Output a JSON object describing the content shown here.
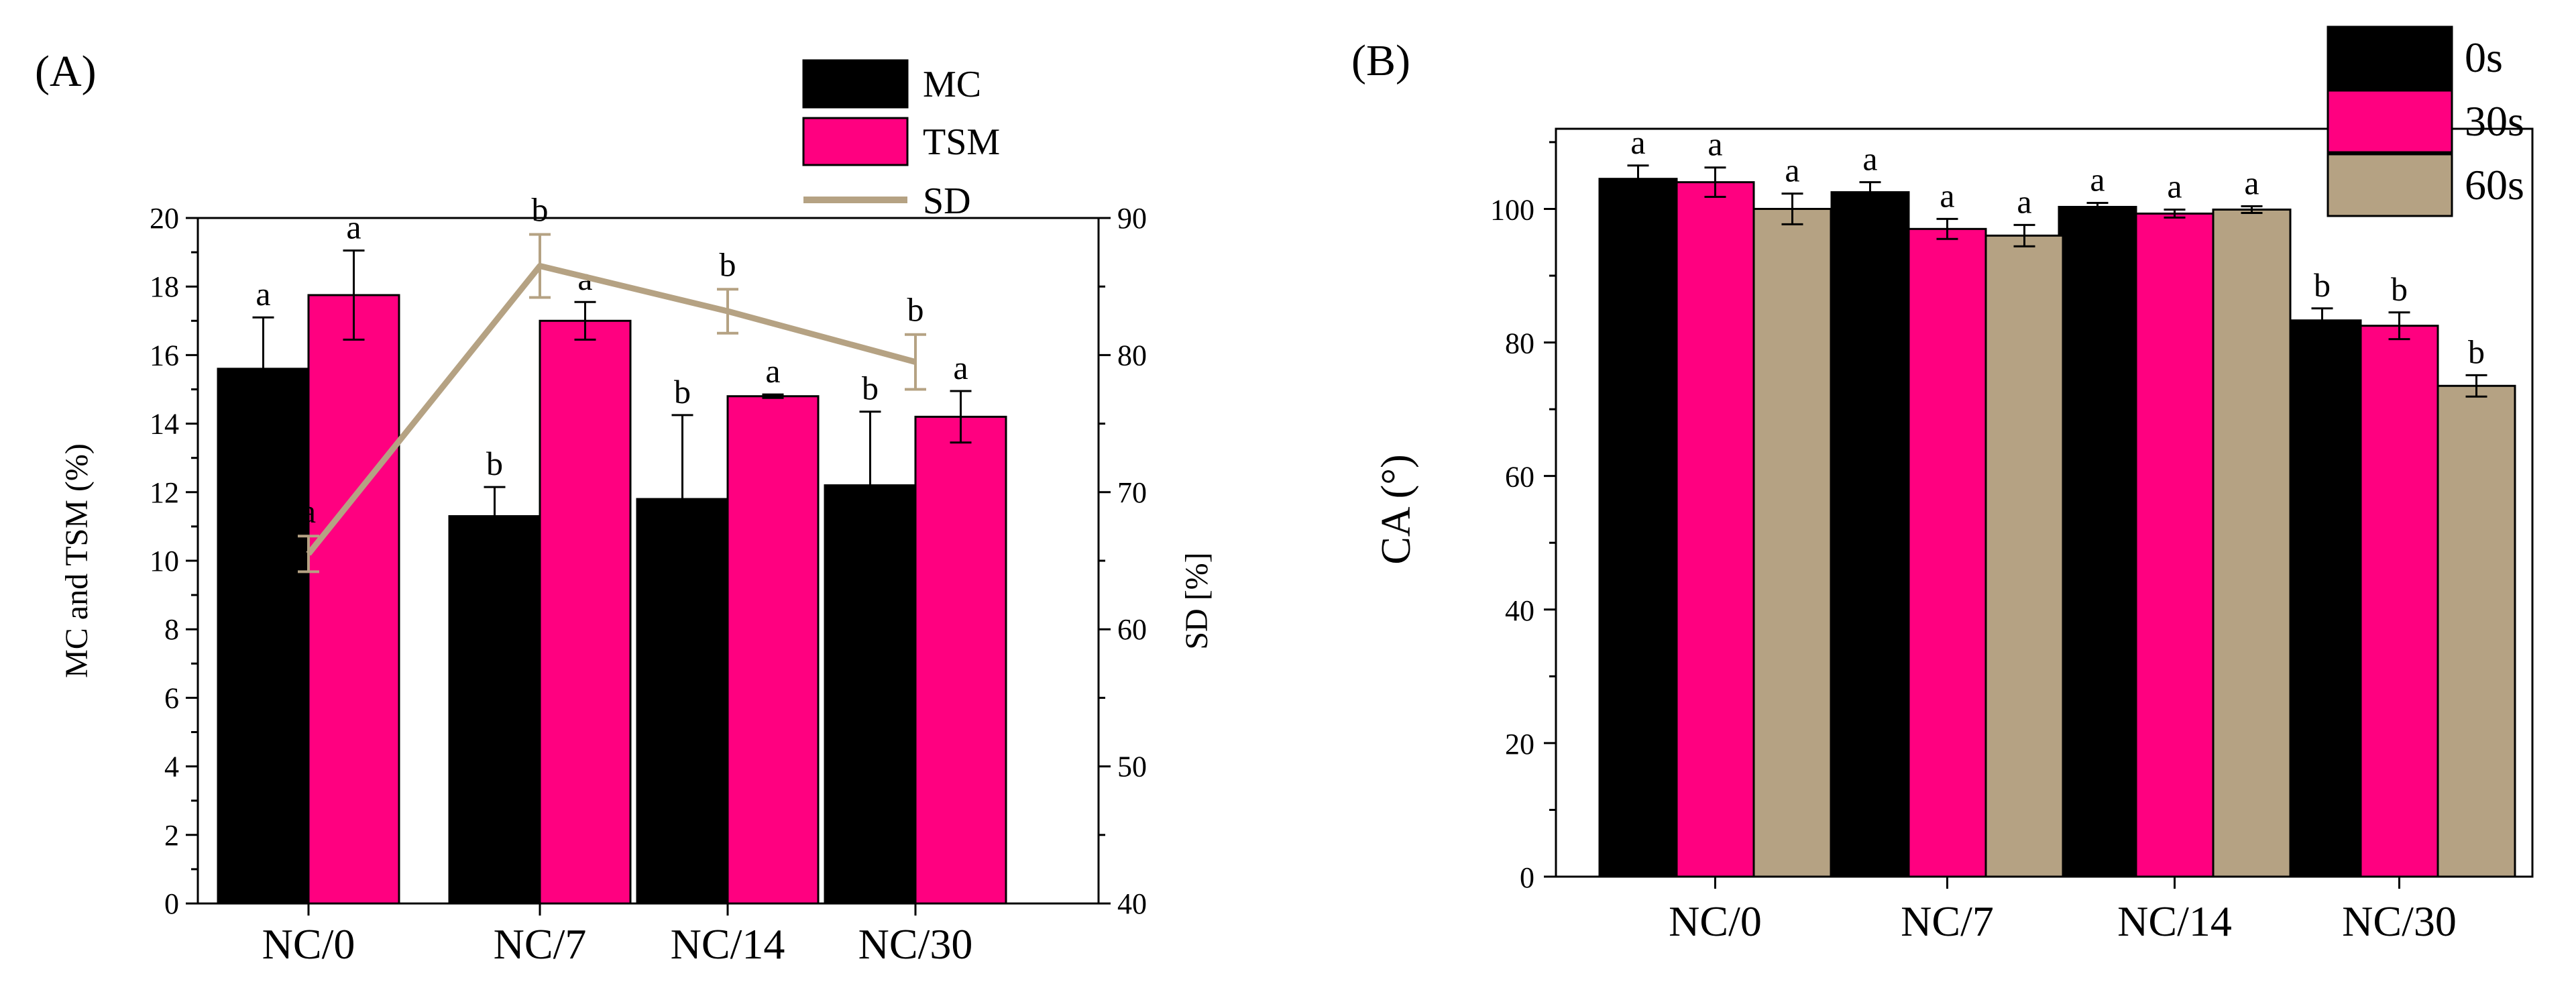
{
  "chart_data": [
    {
      "panel_label": "(A)",
      "type": "bar",
      "categories": [
        "NC/0",
        "NC/7",
        "NC/14",
        "NC/30"
      ],
      "ylabel": "MC and TSM (%)",
      "ylim": [
        0,
        20
      ],
      "yticks": [
        "0",
        "2",
        "4",
        "6",
        "8",
        "10",
        "12",
        "14",
        "16",
        "18",
        "20"
      ],
      "y2label": "SD [%]",
      "y2lim": [
        40,
        90
      ],
      "y2ticks": [
        "40",
        "50",
        "60",
        "70",
        "80",
        "90"
      ],
      "series": [
        {
          "name": "MC",
          "color": "#000000",
          "axis": "left",
          "style": "bar",
          "values": [
            15.6,
            11.3,
            11.8,
            12.2
          ],
          "errors": [
            1.5,
            0.85,
            2.45,
            2.15
          ],
          "letters": [
            "a",
            "b",
            "b",
            "b"
          ]
        },
        {
          "name": "TSM",
          "color": "#ff0080",
          "axis": "left",
          "style": "bar",
          "values": [
            17.75,
            17.0,
            14.8,
            14.2
          ],
          "errors": [
            1.3,
            0.55,
            0.05,
            0.75
          ],
          "letters": [
            "a",
            "a",
            "a",
            "a"
          ]
        },
        {
          "name": "SD",
          "color": "#b5a283",
          "axis": "right",
          "style": "line",
          "values": [
            65.5,
            86.5,
            83.2,
            79.5
          ],
          "errors": [
            1.3,
            2.3,
            1.6,
            2.0
          ],
          "letters": [
            "a",
            "b",
            "b",
            "b"
          ]
        }
      ],
      "legend": [
        "MC",
        "TSM",
        "SD"
      ]
    },
    {
      "panel_label": "(B)",
      "type": "bar",
      "categories": [
        "NC/0",
        "NC/7",
        "NC/14",
        "NC/30"
      ],
      "ylabel": "CA (°)",
      "ylim": [
        0,
        112
      ],
      "yticks": [
        "0",
        "20",
        "40",
        "60",
        "80",
        "100"
      ],
      "series": [
        {
          "name": "0s",
          "color": "#000000",
          "values": [
            104.5,
            102.5,
            100.3,
            83.3
          ],
          "errors": [
            2.0,
            1.5,
            0.6,
            1.8
          ],
          "letters": [
            "a",
            "a",
            "a",
            "b"
          ]
        },
        {
          "name": "30s",
          "color": "#ff0080",
          "values": [
            104.0,
            97.0,
            99.3,
            82.5
          ],
          "errors": [
            2.2,
            1.5,
            0.6,
            2.0
          ],
          "letters": [
            "a",
            "a",
            "a",
            "b"
          ]
        },
        {
          "name": "60s",
          "color": "#b5a283",
          "values": [
            100.0,
            96.0,
            99.9,
            73.5
          ],
          "errors": [
            2.3,
            1.6,
            0.5,
            1.6
          ],
          "letters": [
            "a",
            "a",
            "a",
            "b"
          ]
        }
      ],
      "legend": [
        "0s",
        "30s",
        "60s"
      ]
    }
  ]
}
